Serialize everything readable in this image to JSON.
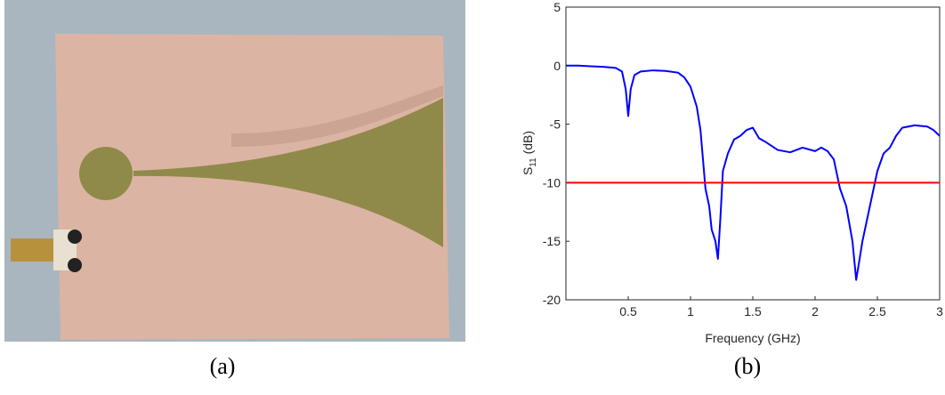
{
  "captions": [
    "(a)",
    "(b)"
  ],
  "chart_data": {
    "type": "line",
    "xlabel": "Frequency (GHz)",
    "ylabel": {
      "text": "S",
      "subscript": "11",
      "suffix": " (dB)"
    },
    "xlim": [
      0,
      3
    ],
    "xticks": [
      0.5,
      1,
      1.5,
      2,
      2.5,
      3
    ],
    "ylim": [
      -20,
      5
    ],
    "yticks": [
      -20,
      -15,
      -10,
      -5,
      0,
      5
    ],
    "series": [
      {
        "color": "#0000ff",
        "x": [
          0,
          0.1,
          0.2,
          0.3,
          0.4,
          0.45,
          0.48,
          0.5,
          0.52,
          0.55,
          0.6,
          0.7,
          0.8,
          0.9,
          0.95,
          1.0,
          1.05,
          1.08,
          1.1,
          1.12,
          1.15,
          1.17,
          1.2,
          1.22,
          1.24,
          1.26,
          1.3,
          1.35,
          1.4,
          1.45,
          1.5,
          1.55,
          1.6,
          1.7,
          1.8,
          1.9,
          2.0,
          2.05,
          2.1,
          2.15,
          2.18,
          2.2,
          2.25,
          2.3,
          2.33,
          2.35,
          2.38,
          2.42,
          2.45,
          2.5,
          2.55,
          2.6,
          2.65,
          2.7,
          2.8,
          2.9,
          2.95,
          3.0
        ],
        "values": [
          0,
          0,
          -0.05,
          -0.1,
          -0.2,
          -0.5,
          -2,
          -4.3,
          -2,
          -0.8,
          -0.5,
          -0.4,
          -0.45,
          -0.6,
          -1,
          -1.8,
          -3.5,
          -5.5,
          -8,
          -10.5,
          -12,
          -14,
          -15,
          -16.5,
          -13,
          -9,
          -7.5,
          -6.3,
          -6,
          -5.5,
          -5.3,
          -6.2,
          -6.5,
          -7.2,
          -7.4,
          -7,
          -7.3,
          -7,
          -7.3,
          -8,
          -9.5,
          -10.5,
          -12,
          -15,
          -18.3,
          -17,
          -15,
          -13,
          -11.5,
          -9,
          -7.5,
          -7,
          -6,
          -5.3,
          -5.1,
          -5.2,
          -5.5,
          -6
        ]
      },
      {
        "color": "#ff0000",
        "x": [
          0,
          3
        ],
        "values": [
          -10,
          -10
        ]
      }
    ]
  }
}
